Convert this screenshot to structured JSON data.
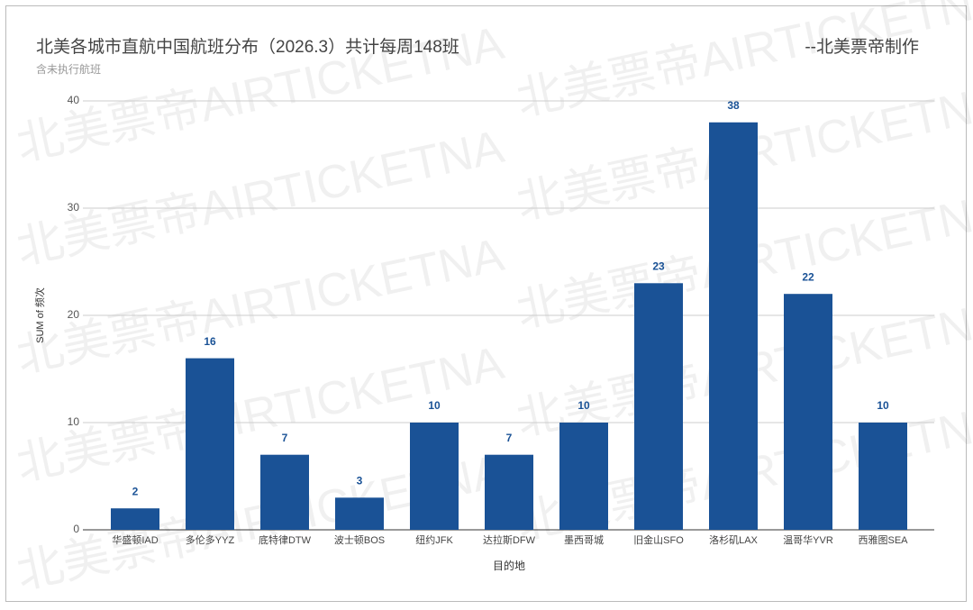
{
  "chart_data": {
    "type": "bar",
    "title": "北美各城市直航中国航班分布（2026.3）共计每周148班",
    "subtitle": "含未执行航班",
    "credit": "--北美票帝制作",
    "watermark": "北美票帝AIRTICKETNA",
    "x_label": "目的地",
    "y_label": "SUM of 频次",
    "categories": [
      "华盛顿IAD",
      "多伦多YYZ",
      "底特律DTW",
      "波士顿BOS",
      "纽约JFK",
      "达拉斯DFW",
      "墨西哥城",
      "旧金山SFO",
      "洛杉矶LAX",
      "温哥华YVR",
      "西雅图SEA"
    ],
    "values": [
      2,
      16,
      7,
      3,
      10,
      7,
      10,
      23,
      38,
      22,
      10
    ],
    "color": "#1a5296",
    "ylim": [
      0,
      40
    ],
    "yticks": [
      0,
      10,
      20,
      30,
      40
    ],
    "grid": true
  }
}
